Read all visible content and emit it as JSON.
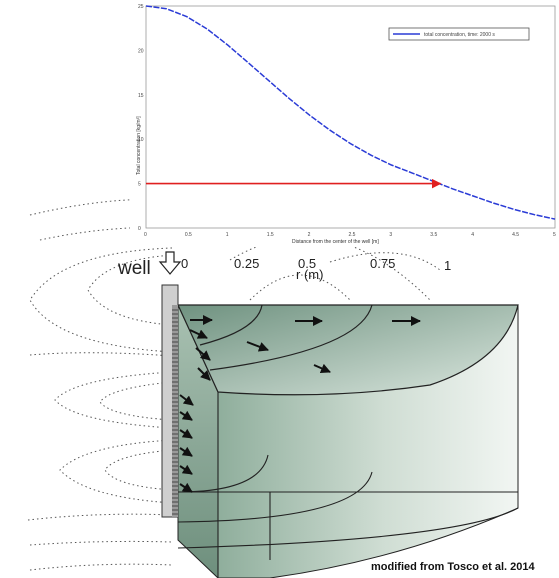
{
  "chart_data": {
    "type": "line",
    "title": "",
    "xlabel": "Distance from the center of the well [m]",
    "ylabel": "Total concentration [kg/m³]",
    "xlim": [
      0,
      5
    ],
    "ylim": [
      0,
      25
    ],
    "x_ticks": [
      "0",
      "0.5",
      "1",
      "1.5",
      "2",
      "2.5",
      "3",
      "3.5",
      "4",
      "4.5",
      "5"
    ],
    "y_ticks": [
      "0",
      "5",
      "10",
      "15",
      "20",
      "25"
    ],
    "series": [
      {
        "name": "total concentration, time: 2000 s",
        "color": "#2a3bd6",
        "x": [
          0,
          0.25,
          0.5,
          0.75,
          1,
          1.25,
          1.5,
          1.75,
          2,
          2.25,
          2.5,
          2.75,
          3,
          3.25,
          3.5,
          3.75,
          4,
          4.25,
          4.5,
          4.75,
          5
        ],
        "y": [
          25,
          24.7,
          23.8,
          22.4,
          20.6,
          18.6,
          16.6,
          14.6,
          12.7,
          11.0,
          9.5,
          8.2,
          7.1,
          6.2,
          5.3,
          4.4,
          3.6,
          2.8,
          2.1,
          1.5,
          1.0
        ]
      }
    ],
    "annotation": {
      "type": "arrow",
      "y": 5,
      "x_from": 0,
      "x_to": 3.6,
      "color": "#e02020"
    },
    "legend_position": "top-right",
    "grid": false
  },
  "diagram": {
    "well_label": "well",
    "r_axis_label": "r (m)",
    "r_ticks": [
      "0",
      "0.25",
      "0.5",
      "0.75",
      "1"
    ],
    "credit": "modified from Tosco et al. 2014"
  },
  "colors": {
    "body_light": "#e6efea",
    "body_dark": "#7fa08f",
    "well_pipe": "#c8c8c8",
    "arrow": "#111111",
    "red_arrow": "#e02020",
    "series_line": "#2a3bd6"
  }
}
